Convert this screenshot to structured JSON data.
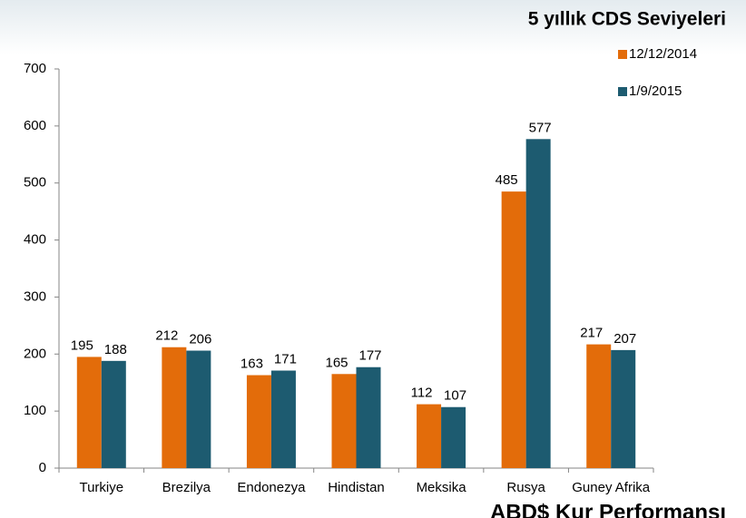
{
  "chart_data": {
    "type": "bar",
    "title": "5 yıllık CDS Seviyeleri",
    "categories": [
      "Turkiye",
      "Brezilya",
      "Endonezya",
      "Hindistan",
      "Meksika",
      "Rusya",
      "Guney Afrika"
    ],
    "series": [
      {
        "name": "12/12/2014",
        "color": "#e36c0a",
        "values": [
          195,
          212,
          163,
          165,
          112,
          485,
          217
        ]
      },
      {
        "name": "1/9/2015",
        "color": "#1d5b70",
        "values": [
          188,
          206,
          171,
          177,
          107,
          577,
          207
        ]
      }
    ],
    "ylim": [
      0,
      700
    ],
    "yticks": [
      0,
      100,
      200,
      300,
      400,
      500,
      600,
      700
    ],
    "grid": false,
    "legend": "top-right",
    "footer_text": "ABD$ Kur Performansı"
  }
}
